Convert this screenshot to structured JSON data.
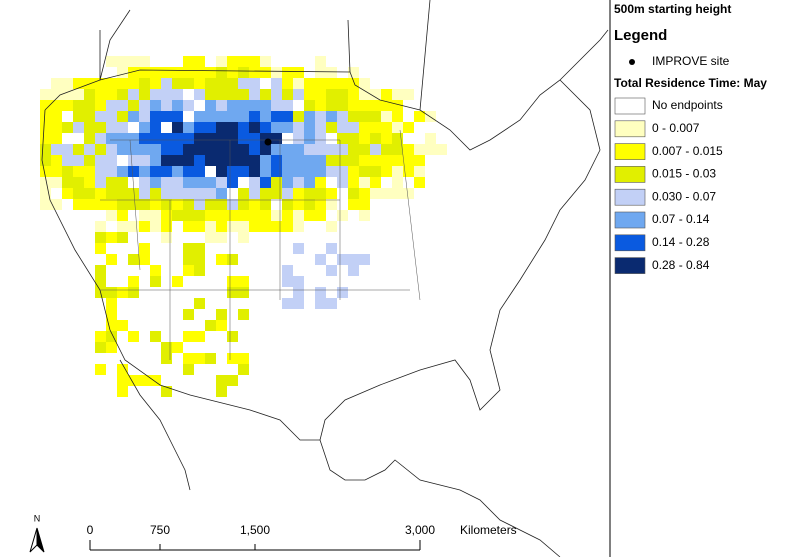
{
  "header": {
    "title": "500m starting height"
  },
  "legend": {
    "title": "Legend",
    "site": {
      "label": "IMPROVE site",
      "color": "#000000"
    },
    "subtitle": "Total Residence Time: May",
    "classes": [
      {
        "label": "No endpoints",
        "color": "#ffffff"
      },
      {
        "label": "0 - 0.007",
        "color": "#ffffc0"
      },
      {
        "label": "0.007 - 0.015",
        "color": "#ffff00"
      },
      {
        "label": "0.015 - 0.03",
        "color": "#e1ef00"
      },
      {
        "label": "0.030 - 0.07",
        "color": "#c2d0f6"
      },
      {
        "label": "0.07 - 0.14",
        "color": "#6fa8f0"
      },
      {
        "label": "0.14 - 0.28",
        "color": "#0a5ae0"
      },
      {
        "label": "0.28 - 0.84",
        "color": "#0a2a70"
      }
    ]
  },
  "scale_bar": {
    "labels": [
      "0",
      "750",
      "1,500",
      "3,000"
    ],
    "unit": "Kilometers"
  },
  "north_arrow": {
    "label": "N"
  }
}
